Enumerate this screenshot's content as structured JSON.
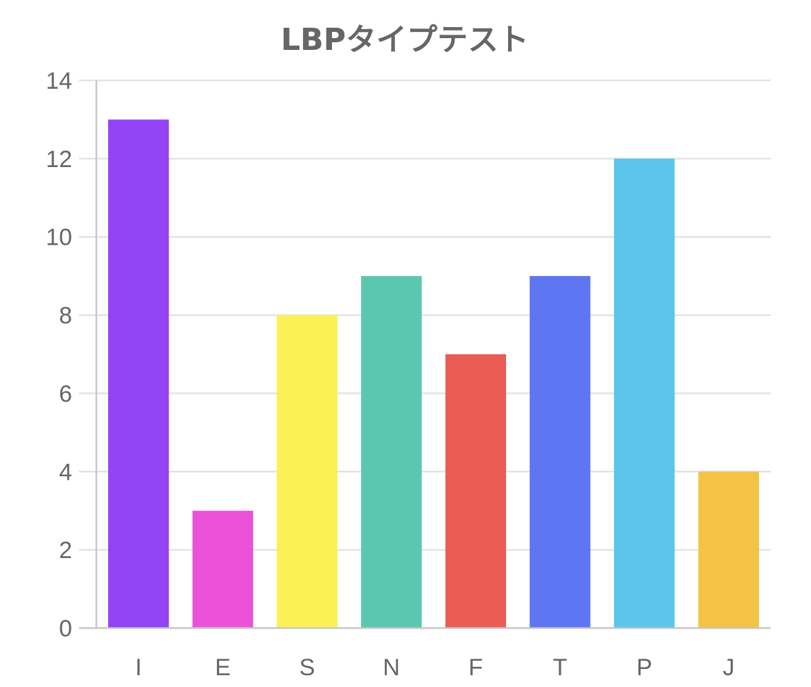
{
  "chart_data": {
    "type": "bar",
    "title": "LBPタイプテスト",
    "categories": [
      "I",
      "E",
      "S",
      "N",
      "F",
      "T",
      "P",
      "J"
    ],
    "values": [
      13,
      3,
      8,
      9,
      7,
      9,
      12,
      4
    ],
    "colors": [
      "#9344f5",
      "#ec52d9",
      "#fbf056",
      "#5cc7b1",
      "#e95d55",
      "#5f76f3",
      "#5bc5eb",
      "#f4c343"
    ],
    "ylim": [
      0,
      14
    ],
    "yticks": [
      0,
      2,
      4,
      6,
      8,
      10,
      12,
      14
    ],
    "grid": true,
    "legend": "none"
  }
}
